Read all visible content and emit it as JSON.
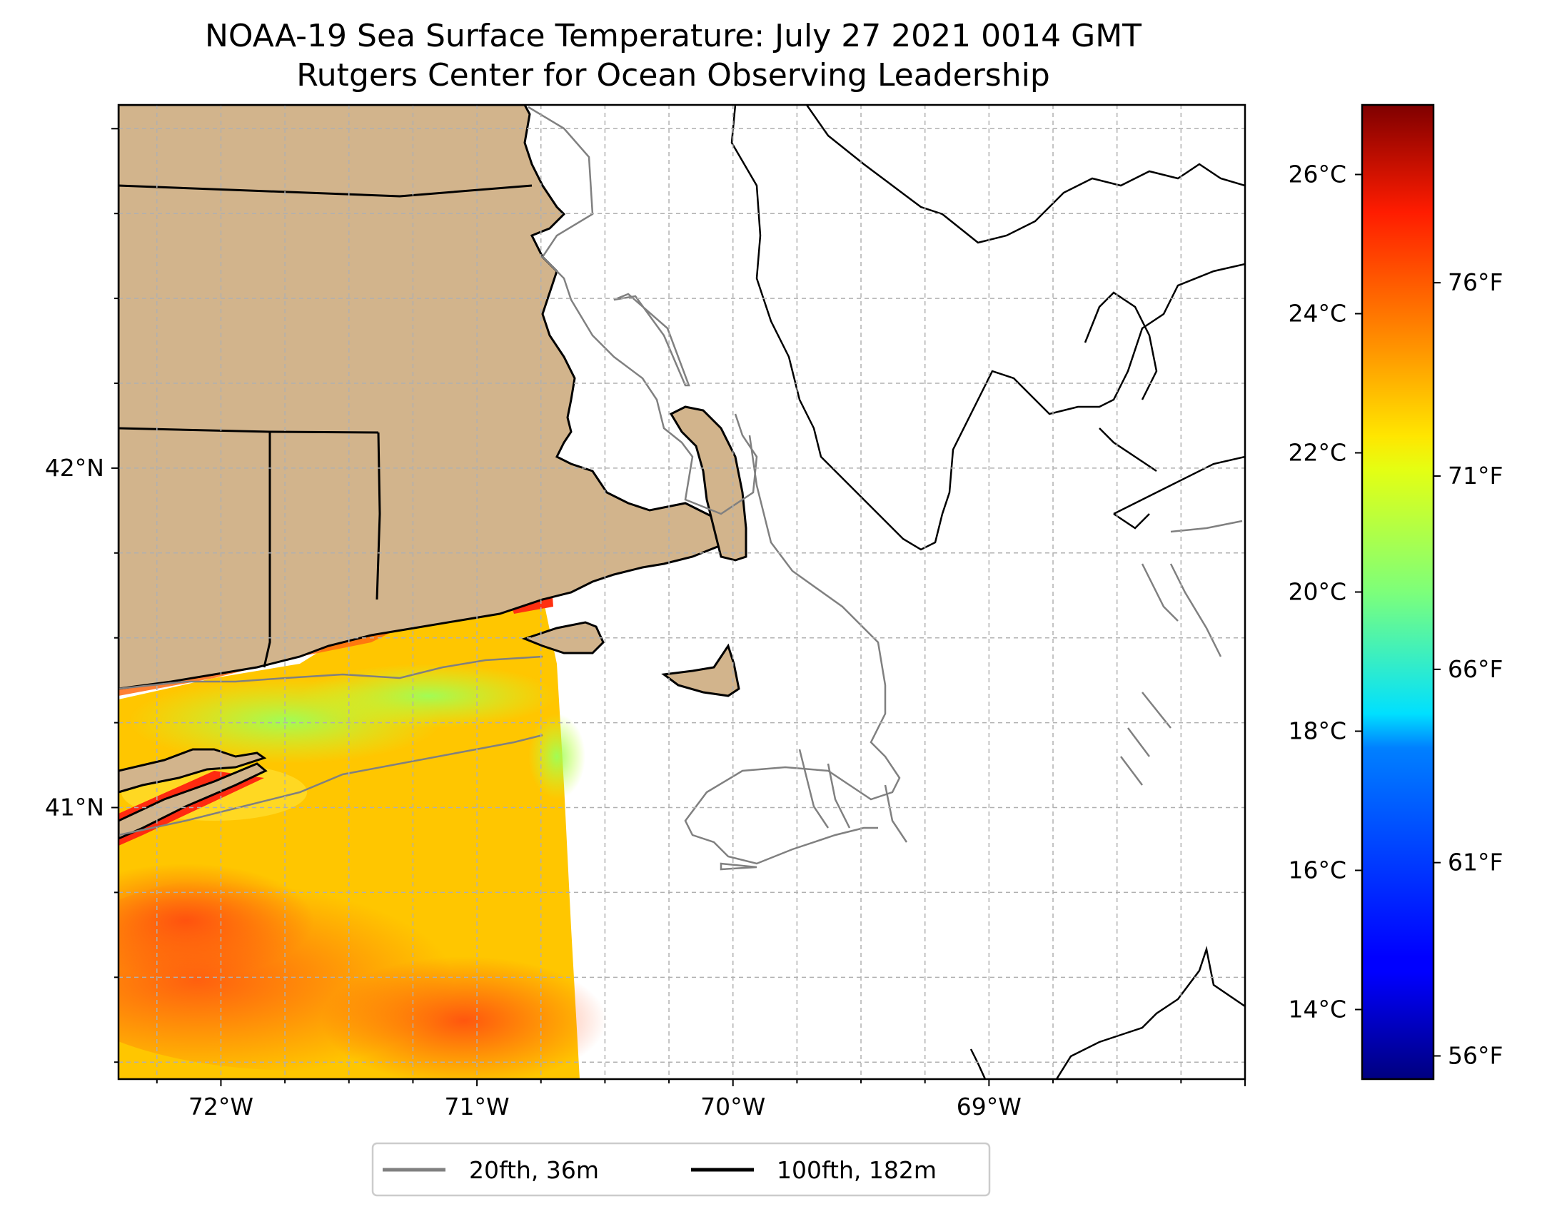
{
  "title": {
    "line1": "NOAA-19 Sea Surface Temperature: July 27 2021 0014 GMT",
    "line2": "Rutgers Center for Ocean Observing Leadership"
  },
  "map": {
    "lon_range": [
      -72.4,
      -68.0
    ],
    "lat_range": [
      40.2,
      43.07
    ],
    "lon_ticks": [
      {
        "value": -72,
        "label": "72°W"
      },
      {
        "value": -71,
        "label": "71°W"
      },
      {
        "value": -70,
        "label": "70°W"
      },
      {
        "value": -69,
        "label": "69°W"
      }
    ],
    "lat_ticks": [
      {
        "value": 42,
        "label": "42°N"
      },
      {
        "value": 41,
        "label": "41°N"
      }
    ],
    "land_color": "#d2b48c",
    "grid_color": "#b0b0b0"
  },
  "colorbar": {
    "cmap": "jet",
    "celsius_ticks": [
      {
        "value": 26,
        "label": "26°C"
      },
      {
        "value": 24,
        "label": "24°C"
      },
      {
        "value": 22,
        "label": "22°C"
      },
      {
        "value": 20,
        "label": "20°C"
      },
      {
        "value": 18,
        "label": "18°C"
      },
      {
        "value": 16,
        "label": "16°C"
      },
      {
        "value": 14,
        "label": "14°C"
      }
    ],
    "fahrenheit_ticks": [
      {
        "value": 76,
        "label": "76°F"
      },
      {
        "value": 71,
        "label": "71°F"
      },
      {
        "value": 66,
        "label": "66°F"
      },
      {
        "value": 61,
        "label": "61°F"
      },
      {
        "value": 56,
        "label": "56°F"
      }
    ],
    "range_celsius": [
      13,
      27
    ]
  },
  "legend": {
    "items": [
      {
        "label": "20fth, 36m",
        "color": "#808080"
      },
      {
        "label": "100fth, 182m",
        "color": "#000000"
      }
    ]
  }
}
